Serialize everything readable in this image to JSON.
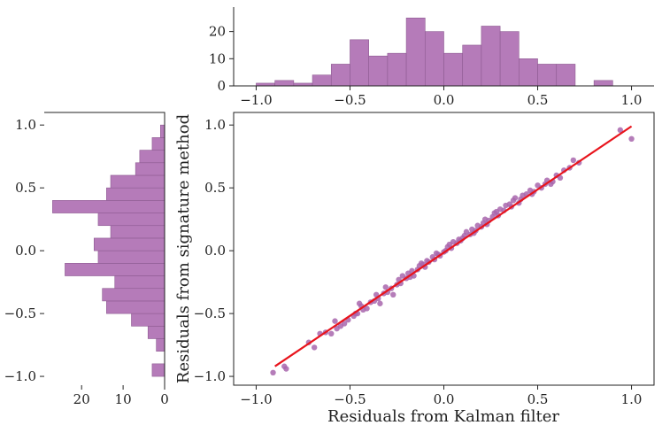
{
  "chart_data": [
    {
      "name": "scatter",
      "type": "scatter",
      "xlabel": "Residuals from Kalman filter",
      "ylabel": "Residuals from signature method",
      "xlim": [
        -1.12,
        1.12
      ],
      "ylim": [
        -1.07,
        1.1
      ],
      "xticks": [
        -1.0,
        -0.5,
        0.0,
        0.5,
        1.0
      ],
      "yticks": [
        -1.0,
        -0.5,
        0.0,
        0.5,
        1.0
      ],
      "xtick_labels": [
        "−1.0",
        "−0.5",
        "0.0",
        "0.5",
        "1.0"
      ],
      "ytick_labels": [
        "−1.0",
        "−0.5",
        "0.0",
        "0.5",
        "1.0"
      ],
      "point_color": "#a866ad",
      "fit_line": {
        "x": [
          -0.9,
          1.0
        ],
        "y": [
          -0.92,
          0.99
        ],
        "color": "#e8141c"
      },
      "points": [
        [
          -0.91,
          -0.97
        ],
        [
          -0.85,
          -0.92
        ],
        [
          -0.84,
          -0.94
        ],
        [
          -0.72,
          -0.73
        ],
        [
          -0.69,
          -0.77
        ],
        [
          -0.66,
          -0.66
        ],
        [
          -0.63,
          -0.65
        ],
        [
          -0.6,
          -0.66
        ],
        [
          -0.58,
          -0.56
        ],
        [
          -0.57,
          -0.62
        ],
        [
          -0.53,
          -0.58
        ],
        [
          -0.51,
          -0.55
        ],
        [
          -0.48,
          -0.52
        ],
        [
          -0.46,
          -0.5
        ],
        [
          -0.44,
          -0.44
        ],
        [
          -0.43,
          -0.47
        ],
        [
          -0.41,
          -0.46
        ],
        [
          -0.39,
          -0.41
        ],
        [
          -0.37,
          -0.4
        ],
        [
          -0.35,
          -0.38
        ],
        [
          -0.34,
          -0.42
        ],
        [
          -0.32,
          -0.34
        ],
        [
          -0.3,
          -0.33
        ],
        [
          -0.28,
          -0.3
        ],
        [
          -0.27,
          -0.35
        ],
        [
          -0.25,
          -0.27
        ],
        [
          -0.23,
          -0.26
        ],
        [
          -0.22,
          -0.2
        ],
        [
          -0.2,
          -0.22
        ],
        [
          -0.19,
          -0.18
        ],
        [
          -0.17,
          -0.16
        ],
        [
          -0.16,
          -0.2
        ],
        [
          -0.14,
          -0.15
        ],
        [
          -0.13,
          -0.12
        ],
        [
          -0.12,
          -0.1
        ],
        [
          -0.1,
          -0.13
        ],
        [
          -0.09,
          -0.08
        ],
        [
          -0.08,
          -0.09
        ],
        [
          -0.06,
          -0.05
        ],
        [
          -0.05,
          -0.07
        ],
        [
          -0.03,
          -0.03
        ],
        [
          -0.02,
          -0.04
        ],
        [
          0.0,
          -0.01
        ],
        [
          0.01,
          0.0
        ],
        [
          0.02,
          0.03
        ],
        [
          0.04,
          0.02
        ],
        [
          0.05,
          0.07
        ],
        [
          0.07,
          0.06
        ],
        [
          0.08,
          0.09
        ],
        [
          0.09,
          0.08
        ],
        [
          0.11,
          0.12
        ],
        [
          0.12,
          0.15
        ],
        [
          0.14,
          0.13
        ],
        [
          0.15,
          0.17
        ],
        [
          0.17,
          0.16
        ],
        [
          0.18,
          0.2
        ],
        [
          0.2,
          0.19
        ],
        [
          0.21,
          0.22
        ],
        [
          0.22,
          0.25
        ],
        [
          0.24,
          0.24
        ],
        [
          0.26,
          0.27
        ],
        [
          0.27,
          0.3
        ],
        [
          0.29,
          0.28
        ],
        [
          0.3,
          0.33
        ],
        [
          0.32,
          0.32
        ],
        [
          0.33,
          0.36
        ],
        [
          0.35,
          0.37
        ],
        [
          0.37,
          0.4
        ],
        [
          0.38,
          0.42
        ],
        [
          0.4,
          0.38
        ],
        [
          0.42,
          0.44
        ],
        [
          0.44,
          0.45
        ],
        [
          0.46,
          0.48
        ],
        [
          0.48,
          0.47
        ],
        [
          0.5,
          0.52
        ],
        [
          0.52,
          0.5
        ],
        [
          0.55,
          0.56
        ],
        [
          0.57,
          0.53
        ],
        [
          0.6,
          0.6
        ],
        [
          0.62,
          0.58
        ],
        [
          0.64,
          0.64
        ],
        [
          0.67,
          0.66
        ],
        [
          0.69,
          0.72
        ],
        [
          0.72,
          0.7
        ],
        [
          0.94,
          0.96
        ],
        [
          1.0,
          0.89
        ],
        [
          -0.47,
          -0.5
        ],
        [
          -0.36,
          -0.35
        ],
        [
          -0.24,
          -0.23
        ],
        [
          -0.11,
          -0.11
        ],
        [
          0.03,
          0.05
        ],
        [
          0.16,
          0.14
        ],
        [
          0.28,
          0.31
        ],
        [
          0.41,
          0.41
        ],
        [
          0.54,
          0.53
        ],
        [
          -0.55,
          -0.6
        ],
        [
          -0.45,
          -0.42
        ],
        [
          -0.31,
          -0.29
        ],
        [
          -0.18,
          -0.21
        ],
        [
          -0.04,
          -0.02
        ],
        [
          0.1,
          0.1
        ],
        [
          0.23,
          0.21
        ],
        [
          0.36,
          0.35
        ],
        [
          0.47,
          0.45
        ],
        [
          0.58,
          0.55
        ]
      ]
    },
    {
      "name": "top-histogram",
      "type": "bar",
      "orientation": "vertical",
      "bin_edges": [
        -1.0,
        -0.9,
        -0.8,
        -0.7,
        -0.6,
        -0.5,
        -0.4,
        -0.3,
        -0.2,
        -0.1,
        0.0,
        0.1,
        0.2,
        0.3,
        0.4,
        0.5,
        0.6,
        0.7,
        0.8,
        0.9,
        1.0
      ],
      "values": [
        1,
        2,
        1,
        4,
        8,
        17,
        11,
        12,
        25,
        20,
        12,
        15,
        22,
        20,
        10,
        8,
        8,
        0,
        2,
        0
      ],
      "ylim": [
        0,
        29
      ],
      "yticks": [
        0,
        10,
        20
      ],
      "ytick_labels": [
        "0",
        "10",
        "20"
      ],
      "xticks": [
        -1.0,
        -0.5,
        0.0,
        0.5,
        1.0
      ],
      "xtick_labels": [
        "−1.0",
        "−0.5",
        "0.0",
        "0.5",
        "1.0"
      ],
      "bar_color": "#b57bb9"
    },
    {
      "name": "side-histogram",
      "type": "bar",
      "orientation": "horizontal",
      "bin_edges": [
        -1.0,
        -0.9,
        -0.8,
        -0.7,
        -0.6,
        -0.5,
        -0.4,
        -0.3,
        -0.2,
        -0.1,
        0.0,
        0.1,
        0.2,
        0.3,
        0.4,
        0.5,
        0.6,
        0.7,
        0.8,
        0.9,
        1.0
      ],
      "values": [
        3,
        0,
        2,
        4,
        8,
        14,
        15,
        12,
        24,
        16,
        17,
        13,
        16,
        27,
        14,
        13,
        7,
        6,
        3,
        1
      ],
      "xlim": [
        29,
        0
      ],
      "xticks": [
        20,
        10,
        0
      ],
      "xtick_labels": [
        "20",
        "10",
        "0"
      ],
      "yticks": [
        -1.0,
        -0.5,
        0.0,
        0.5,
        1.0
      ],
      "ytick_labels": [
        "−1.0",
        "−0.5",
        "0.0",
        "0.5",
        "1.0"
      ],
      "bar_color": "#b57bb9"
    }
  ]
}
